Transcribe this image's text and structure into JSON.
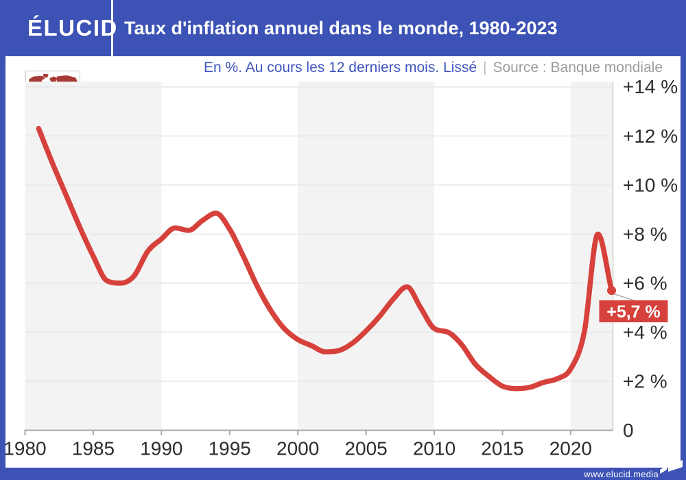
{
  "header": {
    "logo": "ÉLUCID",
    "title": "Taux d'inflation annuel dans le monde, 1980-2023"
  },
  "subtitle": {
    "text": "En %. Au cours les 12 derniers mois. Lissé",
    "divider": "|",
    "source": "Source : Banque mondiale"
  },
  "footer": {
    "url": "www.elucid.media"
  },
  "colors": {
    "brand_blue": "#3c52b5",
    "subtitle_blue": "#4156be",
    "source_gray": "#9b9b9f",
    "line_red": "#d6413c",
    "annotation_red": "#d6413c",
    "map_red": "#a83a36",
    "band_gray": "#f3f3f3",
    "gridline": "#e7e7e7",
    "axis": "#a8a8a8",
    "axis_vertical": "#d2d2d2",
    "tick_text": "#2d2d2d",
    "connector": "#999999"
  },
  "chart_data": {
    "type": "line",
    "title": "Taux d'inflation annuel dans le monde, 1980-2023",
    "unit": "%",
    "x": [
      1981,
      1982,
      1983,
      1984,
      1985,
      1986,
      1987,
      1988,
      1989,
      1990,
      1991,
      1992,
      1993,
      1994,
      1995,
      1996,
      1997,
      1998,
      1999,
      2000,
      2001,
      2002,
      2003,
      2004,
      2005,
      2006,
      2007,
      2008,
      2009,
      2010,
      2011,
      2012,
      2013,
      2014,
      2015,
      2016,
      2017,
      2018,
      2019,
      2020,
      2021,
      2022,
      2023
    ],
    "values": [
      12.3,
      10.9,
      9.6,
      8.3,
      7.1,
      6.1,
      6.0,
      6.3,
      7.3,
      7.8,
      8.25,
      8.15,
      8.55,
      8.85,
      8.2,
      7.1,
      5.9,
      4.9,
      4.15,
      3.7,
      3.45,
      3.2,
      3.25,
      3.55,
      4.05,
      4.65,
      5.35,
      5.85,
      5.0,
      4.15,
      4.0,
      3.5,
      2.7,
      2.2,
      1.8,
      1.7,
      1.75,
      1.95,
      2.1,
      2.5,
      4.0,
      8.0,
      5.7
    ],
    "end_point": {
      "year": 2023,
      "value": 5.7,
      "label": "+5,7 %"
    },
    "yticks": [
      {
        "value": 14,
        "label": "+14 %"
      },
      {
        "value": 12,
        "label": "+12 %"
      },
      {
        "value": 10,
        "label": "+10 %"
      },
      {
        "value": 8,
        "label": "+8 %"
      },
      {
        "value": 6,
        "label": "+6 %"
      },
      {
        "value": 4,
        "label": "+4 %"
      },
      {
        "value": 2,
        "label": "+2 %"
      },
      {
        "value": 0,
        "label": "0"
      }
    ],
    "xticks": [
      1980,
      1985,
      1990,
      1995,
      2000,
      2005,
      2010,
      2015,
      2020
    ],
    "xlim": [
      1980,
      2023
    ],
    "ylim": [
      0,
      14.2
    ],
    "grid": "horizontal",
    "background_bands": "alternating decades shaded (1980s, 2000s, 2020s)",
    "legend": "none"
  }
}
